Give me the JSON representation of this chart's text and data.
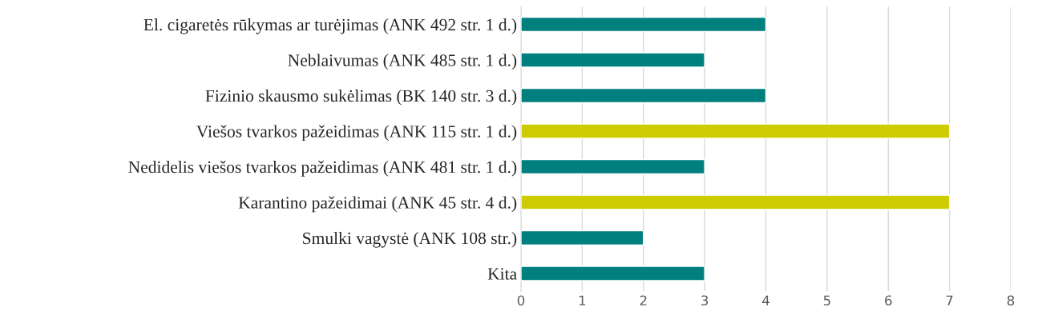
{
  "chart_data": {
    "type": "bar",
    "orientation": "horizontal",
    "categories": [
      "El. cigaretės rūkymas ar turėjimas (ANK 492 str. 1 d.)",
      "Neblaivumas (ANK 485 str. 1 d.)",
      "Fizinio skausmo sukėlimas (BK 140 str. 3 d.)",
      "Viešos tvarkos pažeidimas (ANK 115 str. 1 d.)",
      "Nedidelis viešos tvarkos pažeidimas (ANK 481 str. 1 d.)",
      "Karantino pažeidimai (ANK 45 str. 4 d.)",
      "Smulki vagystė (ANK 108 str.)",
      "Kita"
    ],
    "values": [
      4,
      3,
      4,
      7,
      3,
      7,
      2,
      3
    ],
    "colors": [
      "#007f7f",
      "#007f7f",
      "#007f7f",
      "#cccc00",
      "#007f7f",
      "#cccc00",
      "#007f7f",
      "#007f7f"
    ],
    "xlim": [
      0,
      8
    ],
    "xticks": [
      0,
      1,
      2,
      3,
      4,
      5,
      6,
      7,
      8
    ],
    "grid": "x",
    "legend": false
  }
}
